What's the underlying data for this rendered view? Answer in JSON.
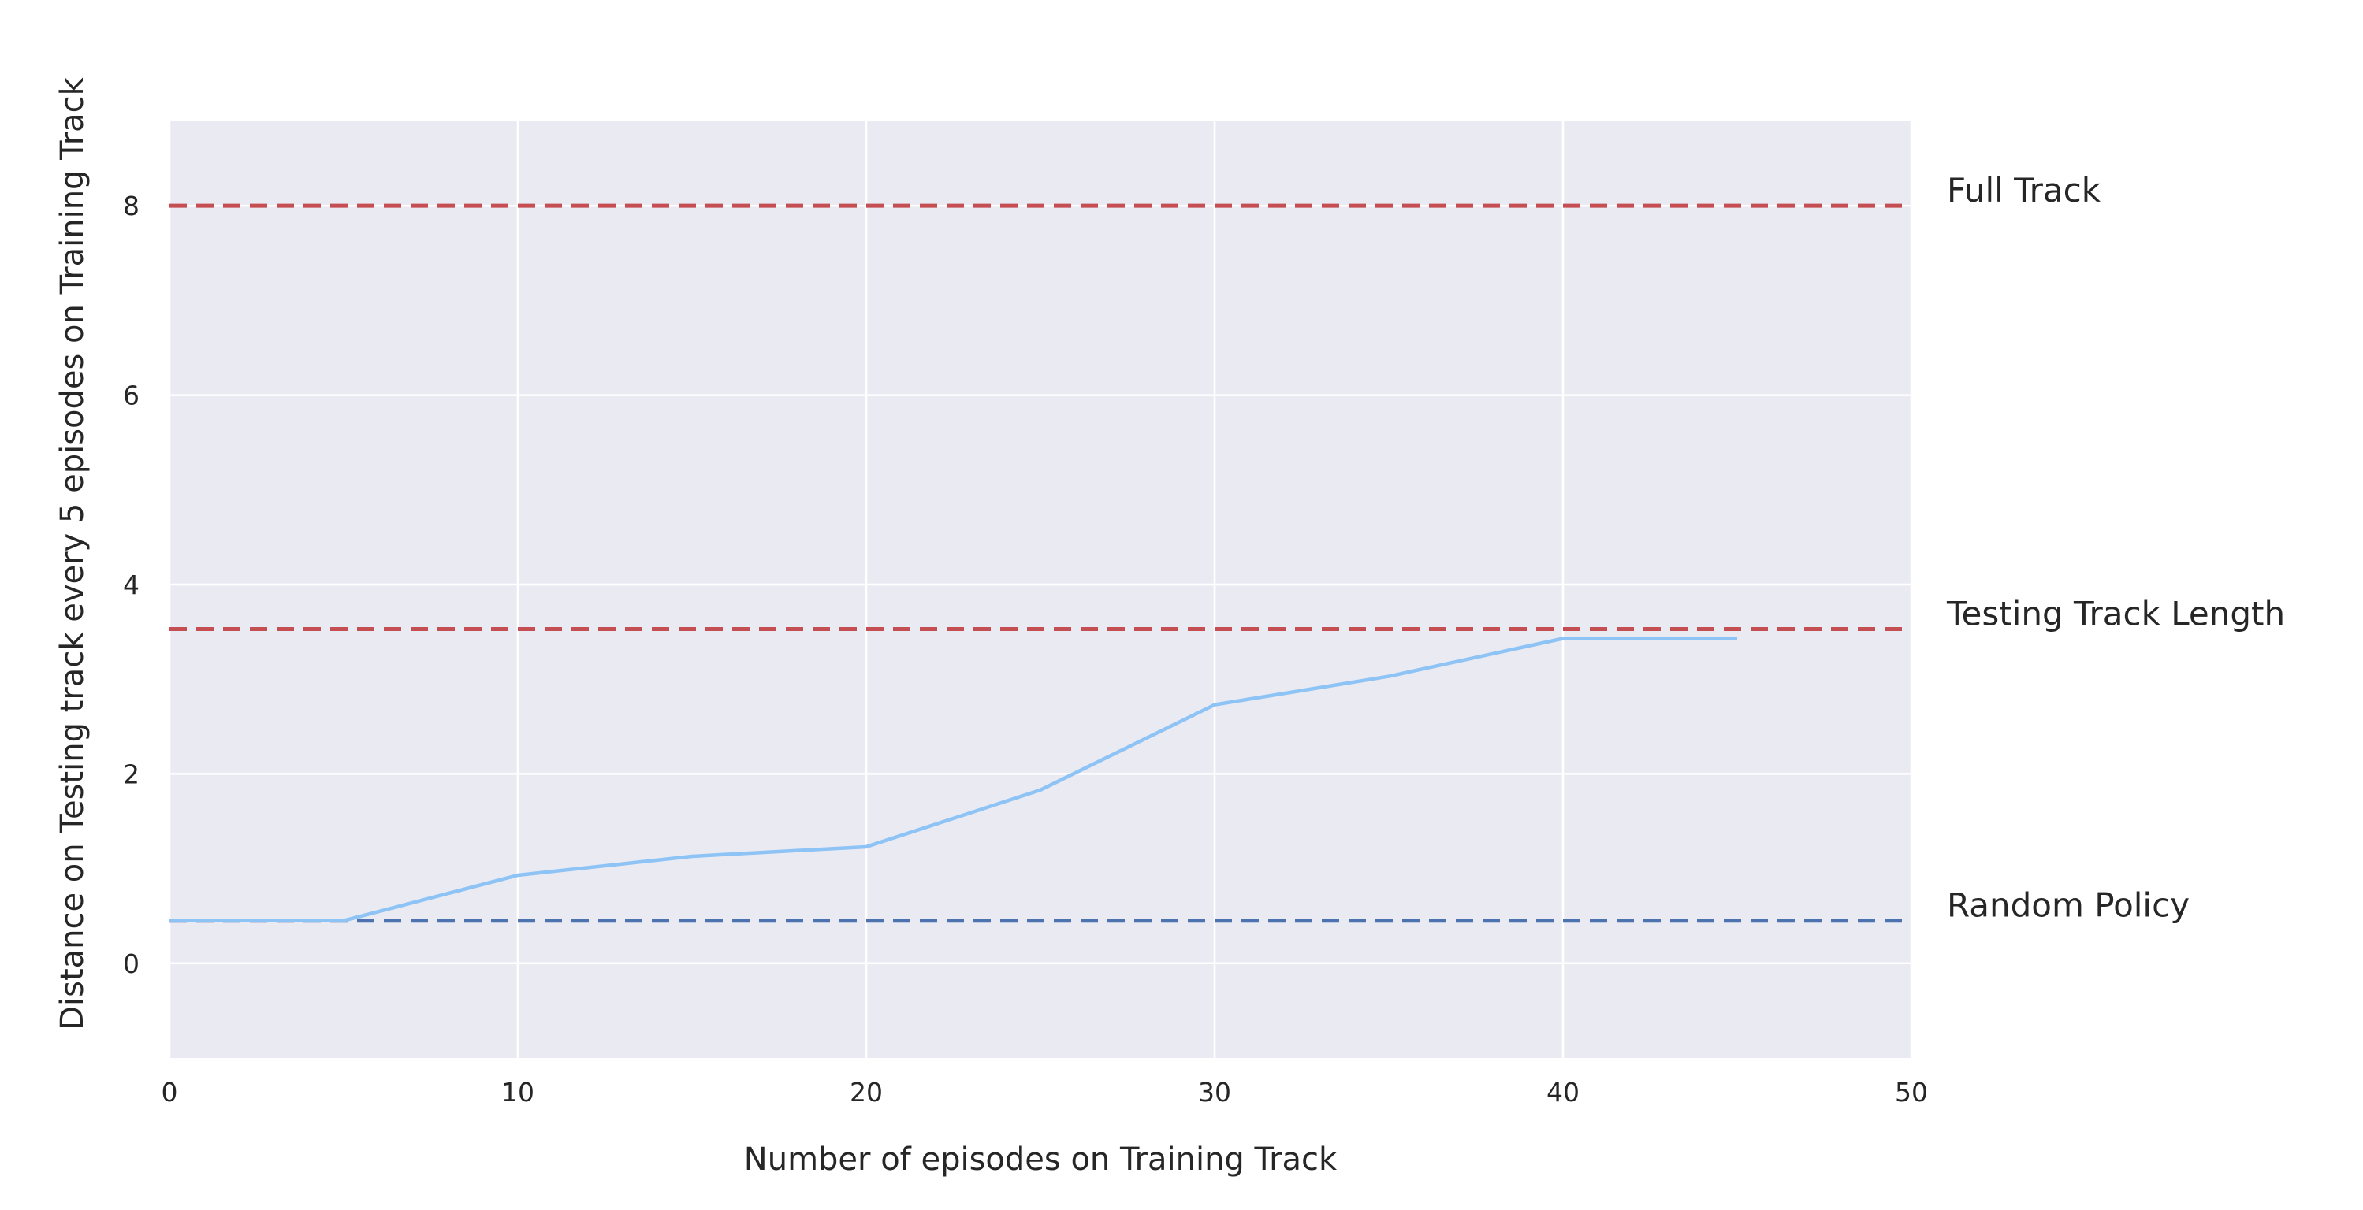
{
  "chart_data": {
    "type": "line",
    "title": "",
    "xlabel": "Number of episodes on Training Track",
    "ylabel": "Distance on Testing track every 5 episodes on Training Track",
    "xlim": [
      0,
      50
    ],
    "ylim": [
      -1,
      8.9
    ],
    "x_ticks": [
      0,
      10,
      20,
      30,
      40,
      50
    ],
    "y_ticks": [
      0,
      2,
      4,
      6,
      8
    ],
    "grid": true,
    "background_color": "#eaeaf2",
    "grid_color": "#ffffff",
    "series": [
      {
        "color": "#8ec3f5",
        "x": [
          0,
          5,
          10,
          15,
          20,
          25,
          30,
          35,
          40,
          45
        ],
        "y": [
          0.45,
          0.45,
          0.93,
          1.13,
          1.23,
          1.83,
          2.73,
          3.03,
          3.43,
          3.43
        ]
      }
    ],
    "reference_lines": [
      {
        "label": "Full Track",
        "y": 8.0,
        "color": "#c44e52",
        "style": "dashed"
      },
      {
        "label": "Testing Track Length",
        "y": 3.53,
        "color": "#c44e52",
        "style": "dashed"
      },
      {
        "label": "Random Policy",
        "y": 0.45,
        "color": "#4c72b0",
        "style": "dashed"
      }
    ]
  }
}
